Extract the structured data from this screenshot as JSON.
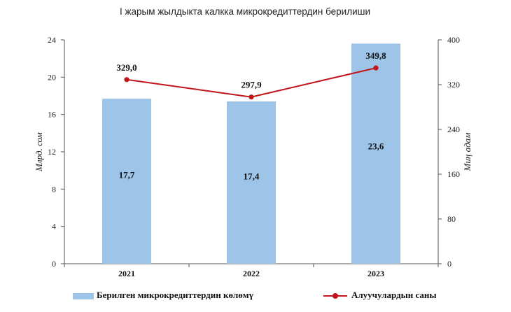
{
  "title": "I жарым жылдыкта калкка микрокредиттердин берилиши",
  "chart_data": {
    "type": "bar",
    "categories": [
      "2021",
      "2022",
      "2023"
    ],
    "series": [
      {
        "name": "Берилген микрокредиттердин көлөмү",
        "type": "bar",
        "axis": "left",
        "values": [
          17.7,
          17.4,
          23.6
        ],
        "labels": [
          "17,7",
          "17,4",
          "23,6"
        ],
        "color": "#9ec4e8"
      },
      {
        "name": "Алуучулардын саны",
        "type": "line",
        "axis": "right",
        "values": [
          329.0,
          297.9,
          349.8
        ],
        "labels": [
          "329,0",
          "297,9",
          "349,8"
        ],
        "color": "#c0161c"
      }
    ],
    "y_left": {
      "label": "Млрд. сом",
      "range": [
        0,
        24
      ],
      "ticks": [
        "0",
        "4",
        "8",
        "12",
        "16",
        "20",
        "24"
      ]
    },
    "y_right": {
      "label": "Миң адам",
      "range": [
        0,
        400
      ],
      "ticks": [
        "0",
        "80",
        "160",
        "240",
        "320",
        "400"
      ]
    },
    "grid": false,
    "legend_position": "bottom"
  }
}
